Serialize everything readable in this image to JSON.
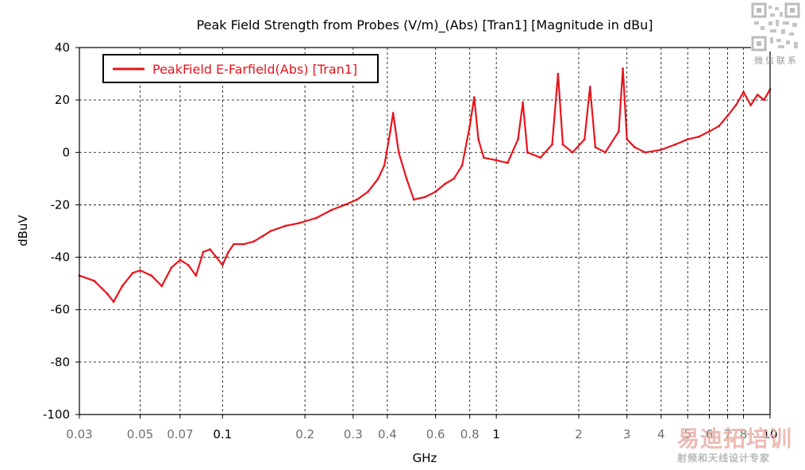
{
  "chart_data": {
    "type": "line",
    "title": "Peak Field Strength from Probes (V/m)_(Abs) [Tran1] [Magnitude in dBu]",
    "xlabel": "GHz",
    "ylabel": "dBuV",
    "xscale": "log",
    "xlim": [
      0.03,
      10
    ],
    "ylim": [
      -100,
      40
    ],
    "grid": true,
    "legend_position": "top-left",
    "line_color": "#e8141c",
    "x_ticks": [
      0.03,
      0.05,
      0.07,
      0.1,
      0.2,
      0.3,
      0.4,
      0.6,
      0.8,
      1,
      2,
      3,
      4,
      5,
      6,
      7,
      8,
      10
    ],
    "x_tick_labels": [
      "0.03",
      "0.05",
      "0.07",
      "0.1",
      "0.2",
      "0.3",
      "0.4",
      "0.6",
      "0.8",
      "1",
      "2",
      "3",
      "4",
      "5",
      "6",
      "7",
      "8",
      "10"
    ],
    "y_ticks": [
      -100,
      -80,
      -60,
      -40,
      -20,
      0,
      20,
      40
    ],
    "y_tick_labels": [
      "-100",
      "-80",
      "-60",
      "-40",
      "-20",
      "0",
      "20",
      "40"
    ],
    "series": [
      {
        "name": "PeakField E-Farfield(Abs) [Tran1]",
        "x": [
          0.03,
          0.034,
          0.038,
          0.04,
          0.043,
          0.047,
          0.05,
          0.055,
          0.06,
          0.065,
          0.07,
          0.075,
          0.08,
          0.085,
          0.09,
          0.095,
          0.1,
          0.105,
          0.11,
          0.12,
          0.13,
          0.14,
          0.15,
          0.17,
          0.19,
          0.22,
          0.25,
          0.28,
          0.31,
          0.34,
          0.37,
          0.39,
          0.41,
          0.42,
          0.44,
          0.47,
          0.5,
          0.55,
          0.6,
          0.65,
          0.7,
          0.75,
          0.8,
          0.83,
          0.86,
          0.9,
          1.0,
          1.1,
          1.2,
          1.25,
          1.3,
          1.45,
          1.6,
          1.68,
          1.75,
          1.9,
          2.1,
          2.2,
          2.3,
          2.5,
          2.8,
          2.9,
          3.0,
          3.2,
          3.5,
          4.0,
          4.5,
          5.0,
          5.5,
          6.0,
          6.5,
          7.0,
          7.5,
          8.0,
          8.5,
          9.0,
          9.5,
          10.0
        ],
        "y": [
          -47,
          -49,
          -54,
          -57,
          -51,
          -46,
          -45,
          -47,
          -51,
          -44,
          -41,
          -43,
          -47,
          -38,
          -37,
          -40,
          -43,
          -38,
          -35,
          -35,
          -34,
          -32,
          -30,
          -28,
          -27,
          -25,
          -22,
          -20,
          -18,
          -15,
          -10,
          -5,
          8,
          15,
          0,
          -10,
          -18,
          -17,
          -15,
          -12,
          -10,
          -5,
          10,
          21,
          5,
          -2,
          -3,
          -4,
          5,
          19,
          0,
          -2,
          3,
          30,
          3,
          0,
          5,
          25,
          2,
          0,
          8,
          32,
          5,
          2,
          0,
          1,
          3,
          5,
          6,
          8,
          10,
          14,
          18,
          23,
          18,
          22,
          20,
          24
        ]
      }
    ]
  },
  "watermark": {
    "qr_caption": "微信联系",
    "brand": "易迪拓培训",
    "tagline": "射频和天线设计专家"
  }
}
